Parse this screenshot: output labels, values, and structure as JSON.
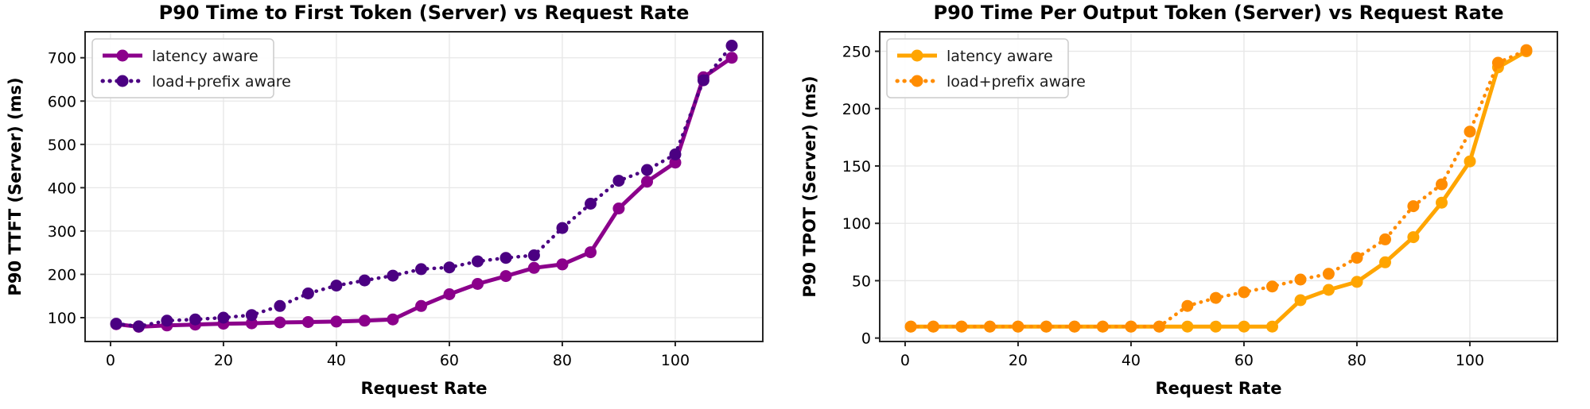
{
  "figure": {
    "background": "#ffffff",
    "grid_color": "#e7e7e7",
    "spine_color": "#262626",
    "tick_color": "#262626",
    "text_color": "#000000",
    "legend_border_color": "#cccccc",
    "legend_background": "#ffffff"
  },
  "chart_data": [
    {
      "type": "line",
      "title": "P90 Time to First Token (Server) vs Request Rate",
      "xlabel": "Request Rate",
      "ylabel": "P90 TTFT (Server) (ms)",
      "grid": true,
      "legend_position": "upper-left",
      "xlim": [
        -4.5,
        115.5
      ],
      "ylim": [
        45,
        760
      ],
      "xticks": [
        0,
        20,
        40,
        60,
        80,
        100
      ],
      "yticks": [
        100,
        200,
        300,
        400,
        500,
        600,
        700
      ],
      "x": [
        1,
        5,
        10,
        15,
        20,
        25,
        30,
        35,
        40,
        45,
        50,
        55,
        60,
        65,
        70,
        75,
        80,
        85,
        90,
        95,
        100,
        105,
        110
      ],
      "series": [
        {
          "name": "latency aware",
          "color": "#8B008B",
          "line_style": "solid",
          "marker": "circle",
          "values": [
            85,
            79,
            82,
            84,
            86,
            87,
            89,
            90,
            91,
            93,
            96,
            127,
            154,
            178,
            196,
            215,
            223,
            251,
            352,
            414,
            458,
            655,
            700
          ]
        },
        {
          "name": "load+prefix aware",
          "color": "#4B0082",
          "line_style": "dotted",
          "marker": "circle",
          "values": [
            86,
            80,
            93,
            96,
            100,
            106,
            127,
            156,
            174,
            186,
            197,
            212,
            216,
            230,
            238,
            244,
            307,
            363,
            416,
            441,
            477,
            648,
            728
          ]
        }
      ]
    },
    {
      "type": "line",
      "title": "P90 Time Per Output Token (Server) vs Request Rate",
      "xlabel": "Request Rate",
      "ylabel": "P90 TPOT (Server) (ms)",
      "grid": true,
      "legend_position": "upper-left",
      "xlim": [
        -4.5,
        115.5
      ],
      "ylim": [
        -3,
        267
      ],
      "xticks": [
        0,
        20,
        40,
        60,
        80,
        100
      ],
      "yticks": [
        0,
        50,
        100,
        150,
        200,
        250
      ],
      "x": [
        1,
        5,
        10,
        15,
        20,
        25,
        30,
        35,
        40,
        45,
        50,
        55,
        60,
        65,
        70,
        75,
        80,
        85,
        90,
        95,
        100,
        105,
        110
      ],
      "series": [
        {
          "name": "latency aware",
          "color": "#FFA500",
          "line_style": "solid",
          "marker": "circle",
          "values": [
            10,
            10,
            10,
            10,
            10,
            10,
            10,
            10,
            10,
            10,
            10,
            10,
            10,
            10,
            33,
            42,
            49,
            66,
            88,
            118,
            154,
            236,
            250
          ]
        },
        {
          "name": "load+prefix aware",
          "color": "#FF8C00",
          "line_style": "dotted",
          "marker": "circle",
          "values": [
            10,
            10,
            10,
            10,
            10,
            10,
            10,
            10,
            10,
            10,
            28,
            35,
            40,
            45,
            51,
            56,
            70,
            86,
            115,
            134,
            180,
            240,
            251
          ]
        }
      ]
    }
  ]
}
